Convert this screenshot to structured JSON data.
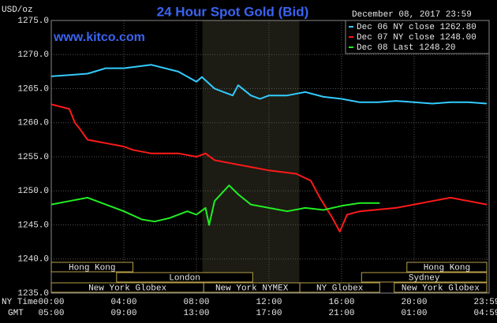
{
  "chart_data": {
    "type": "line",
    "title": "24 Hour Spot Gold (Bid)",
    "y_label": "USD/oz",
    "site": "www.kitco.com",
    "timestamp": "December 08, 2017 23:59",
    "x_label": "NY Time",
    "x2_label": "GMT",
    "xlim": [
      0,
      24
    ],
    "xticks": [
      {
        "value": 0,
        "label": "00:00"
      },
      {
        "value": 4,
        "label": "04:00"
      },
      {
        "value": 8,
        "label": "08:00"
      },
      {
        "value": 12,
        "label": "12:00"
      },
      {
        "value": 16,
        "label": "16:00"
      },
      {
        "value": 20,
        "label": "20:00"
      },
      {
        "value": 24,
        "label": "23:59"
      }
    ],
    "x2tick_labels": [
      "05:00",
      "09:00",
      "13:00",
      "17:00",
      "21:00",
      "01:00",
      "04:59"
    ],
    "ylim": [
      1235,
      1275
    ],
    "yticks": [
      {
        "value": 1235,
        "label": "1235.0"
      },
      {
        "value": 1240,
        "label": "1240.0"
      },
      {
        "value": 1245,
        "label": "1245.0"
      },
      {
        "value": 1250,
        "label": "1250.0"
      },
      {
        "value": 1255,
        "label": "1255.0"
      },
      {
        "value": 1260,
        "label": "1260.0"
      },
      {
        "value": 1265,
        "label": "1265.0"
      },
      {
        "value": 1270,
        "label": "1270.0"
      },
      {
        "value": 1275,
        "label": "1275.0"
      }
    ],
    "grid": true,
    "legend": "upper right",
    "shade_x": [
      8.33,
      13.67
    ],
    "sessions": [
      [
        {
          "label": "Hong Kong",
          "start": 0,
          "end": 4.5
        },
        {
          "label": "Hong Kong",
          "start": 19.6,
          "end": 24
        }
      ],
      [
        {
          "label": "London",
          "start": 3.6,
          "end": 11.1
        },
        {
          "label": "Sydney",
          "start": 17.1,
          "end": 24
        }
      ],
      [
        {
          "label": "New York Globex",
          "start": 0,
          "end": 8.4
        },
        {
          "label": "New York NYMEX",
          "start": 8.4,
          "end": 13.7
        },
        {
          "label": "NY Globex",
          "start": 13.7,
          "end": 18.1
        },
        {
          "label": "New York Globex",
          "start": 18.9,
          "end": 24
        }
      ]
    ],
    "series": [
      {
        "name": "Dec 06 NY close 1262.80",
        "color": "#33ccff",
        "x": [
          0,
          1,
          2,
          3,
          4,
          5.5,
          7,
          8,
          8.3,
          9,
          10,
          10.3,
          11,
          11.5,
          12,
          13,
          14,
          15,
          16,
          17,
          18,
          19,
          20,
          21,
          22,
          23,
          24
        ],
        "values": [
          1266.8,
          1267,
          1267.2,
          1268,
          1268,
          1268.5,
          1267.5,
          1266,
          1266.7,
          1265,
          1264,
          1265.5,
          1264,
          1263.5,
          1264,
          1264,
          1264.5,
          1263.8,
          1263.5,
          1263,
          1263,
          1263.2,
          1263,
          1262.8,
          1263,
          1263,
          1262.8
        ]
      },
      {
        "name": "Dec 07 NY close 1248.00",
        "color": "#ff1a1a",
        "x": [
          0,
          1,
          1.3,
          1.6,
          2,
          3,
          4,
          4.5,
          5.5,
          7,
          8,
          8.5,
          9,
          10,
          11,
          12,
          13.5,
          14.3,
          14.8,
          15.5,
          15.9,
          16.3,
          17,
          19,
          20,
          21,
          22,
          23,
          24
        ],
        "values": [
          1262.7,
          1262,
          1260,
          1259,
          1257.5,
          1257,
          1256.5,
          1256,
          1255.5,
          1255.5,
          1255,
          1255.5,
          1254.5,
          1254,
          1253.5,
          1253,
          1252.5,
          1251.5,
          1249,
          1246,
          1244,
          1246.5,
          1247,
          1247.5,
          1248,
          1248.5,
          1249,
          1248.5,
          1248
        ]
      },
      {
        "name": "Dec 08 Last 1248.20",
        "color": "#22ee22",
        "x": [
          0,
          1,
          2,
          3,
          4,
          5,
          5.7,
          6.5,
          7.5,
          8,
          8.5,
          8.7,
          9,
          9.8,
          10.3,
          11,
          12,
          13,
          14,
          15,
          16,
          17,
          18.1
        ],
        "values": [
          1248,
          1248.5,
          1249,
          1248,
          1247,
          1245.8,
          1245.5,
          1246,
          1247,
          1246.5,
          1247.5,
          1245,
          1248.5,
          1250.8,
          1249.5,
          1248,
          1247.5,
          1247,
          1247.5,
          1247.2,
          1247.8,
          1248.2,
          1248.2
        ]
      }
    ]
  }
}
